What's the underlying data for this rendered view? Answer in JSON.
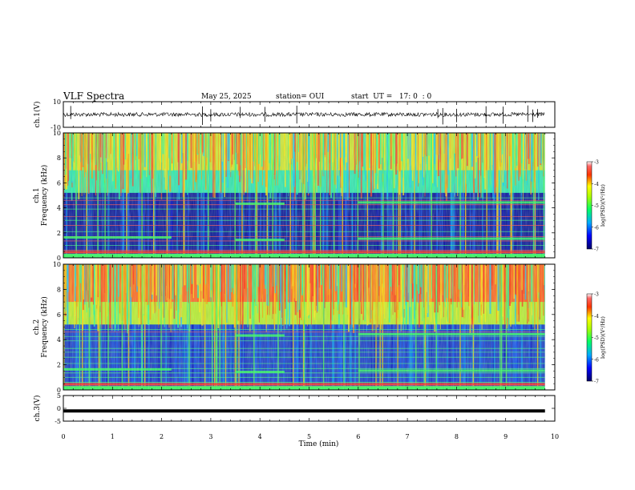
{
  "header": {
    "title": "VLF Spectra",
    "date": "May 25, 2025",
    "station": "station= OUI",
    "start": "start  UT =   17: 0  : 0"
  },
  "chart_data": [
    {
      "type": "line",
      "panel": "ch1-waveform",
      "ylabel": "ch.1(V)",
      "ylim": [
        -10,
        10
      ],
      "yticks": [
        "10",
        "-10"
      ],
      "trace_level": 0,
      "description_values": []
    },
    {
      "type": "heatmap",
      "panel": "ch1-spectrogram",
      "ylabel": "ch.1\nFrequency (kHz)",
      "ylabel_line1": "ch.1",
      "ylabel_line2": "Frequency (kHz)",
      "ylim": [
        0,
        10
      ],
      "yticks": [
        "0",
        "2",
        "4",
        "6",
        "8",
        "10"
      ],
      "xlim": [
        0,
        10
      ],
      "colorbar": {
        "label": "log(PSD)(V²/Hz)",
        "range": [
          -7,
          -3
        ],
        "ticks": [
          "-3",
          "-4",
          "-5",
          "-6",
          "-7"
        ]
      }
    },
    {
      "type": "heatmap",
      "panel": "ch2-spectrogram",
      "ylabel_line1": "ch.2",
      "ylabel_line2": "Frequency (kHz)",
      "ylim": [
        0,
        10
      ],
      "yticks": [
        "0",
        "2",
        "4",
        "6",
        "8",
        "10"
      ],
      "xlim": [
        0,
        10
      ],
      "colorbar": {
        "label": "log(PSD)(V²/Hz)",
        "range": [
          -7,
          -3
        ],
        "ticks": [
          "-3",
          "-4",
          "-5",
          "-6",
          "-7"
        ]
      }
    },
    {
      "type": "line",
      "panel": "ch3-waveform",
      "ylabel": "ch.3(V)",
      "ylim": [
        -5,
        5
      ],
      "yticks": [
        "5",
        "0",
        "-5"
      ],
      "trace_level": -1
    }
  ],
  "xaxis": {
    "label": "Time (min)",
    "ticks": [
      "0",
      "1",
      "2",
      "3",
      "4",
      "5",
      "6",
      "7",
      "8",
      "9",
      "10"
    ],
    "data_end": 9.8
  }
}
